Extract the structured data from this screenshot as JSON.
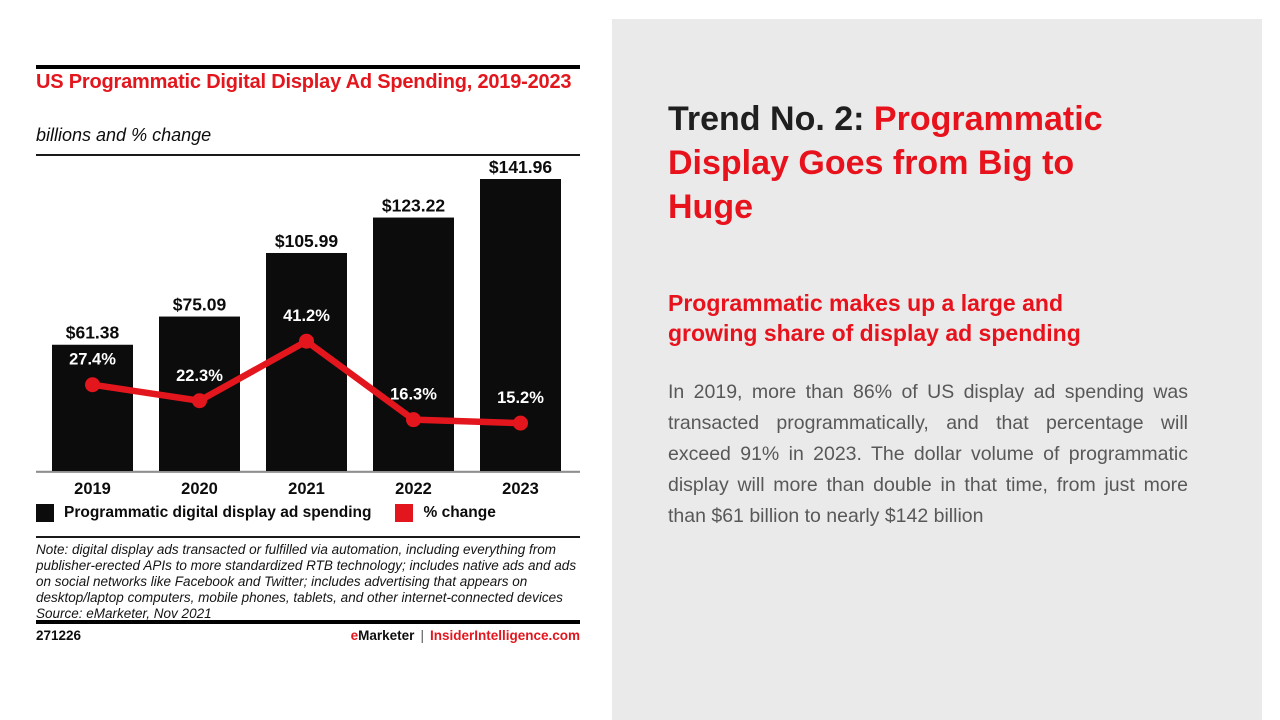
{
  "colors": {
    "chart_accent_red": "#e4161d",
    "headline_red": "#e8121c",
    "headline_black": "#1f1f1f",
    "body_text_gray": "#58585a",
    "bar_black": "#0c0c0c",
    "panel_background": "#eaeaea"
  },
  "chart": {
    "title": "US Programmatic Digital Display Ad Spending, 2019-2023",
    "subtitle": "billions and % change",
    "legend": [
      {
        "label": "Programmatic digital display ad spending",
        "color": "#0c0c0c"
      },
      {
        "label": "% change",
        "color": "#e4161d"
      }
    ],
    "note_lines": [
      "Note: digital display ads transacted or fulfilled via automation, including everything from",
      "publisher-erected APIs to more standardized RTB technology; includes native ads and ads",
      "on social networks like Facebook and Twitter; includes advertising that appears on",
      "desktop/laptop computers, mobile phones, tablets, and other internet-connected devices",
      "Source: eMarketer, Nov 2021"
    ],
    "chart_id": "271226",
    "brand": {
      "prefix": "e",
      "name": "Marketer",
      "divider": "|",
      "site": "InsiderIntelligence.com"
    }
  },
  "chart_data": {
    "type": "bar",
    "subtype": "bar + line combo",
    "title": "US Programmatic Digital Display Ad Spending, 2019-2023",
    "subtitle": "billions and % change",
    "categories": [
      "2019",
      "2020",
      "2021",
      "2022",
      "2023"
    ],
    "series": [
      {
        "name": "Programmatic digital display ad spending",
        "type": "bar",
        "unit": "USD billions",
        "color": "#0c0c0c",
        "values": [
          61.38,
          75.09,
          105.99,
          123.22,
          141.96
        ],
        "labels": [
          "$61.38",
          "$75.09",
          "$105.99",
          "$123.22",
          "$141.96"
        ]
      },
      {
        "name": "% change",
        "type": "line",
        "unit": "percent",
        "color": "#e4161d",
        "values": [
          27.4,
          22.3,
          41.2,
          16.3,
          15.2
        ],
        "labels": [
          "27.4%",
          "22.3%",
          "41.2%",
          "16.3%",
          "15.2%"
        ],
        "point_label_color": "#ffffff"
      }
    ],
    "xlabel": "",
    "ylabel": "billions and % change",
    "bar_axis_range": [
      0,
      150
    ],
    "line_axis_range": [
      0,
      100
    ],
    "grid": false,
    "legend_position": "bottom"
  },
  "trend_panel": {
    "heading_prefix": "Trend No. 2: ",
    "heading_highlight": "Programmatic Display Goes from Big to Huge",
    "subheading": "Programmatic makes up a large and growing share of display ad spending",
    "body": "In 2019, more than 86% of US display ad spending was transacted programmatically, and that percentage will exceed 91% in 2023. The dollar volume of programmatic display will more than double in that time, from just more than $61 billion to nearly $142 billion"
  }
}
